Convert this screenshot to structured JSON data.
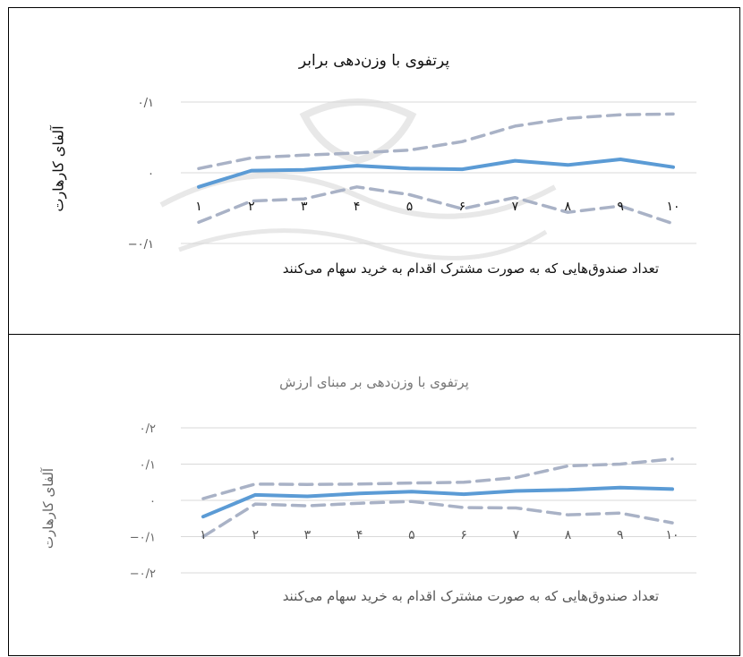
{
  "chart_data": [
    {
      "type": "line",
      "title": "پرتفوی با وزن‌دهی برابر",
      "xlabel": "تعداد صندوق‌هایی که به صورت مشترک اقدام به خرید سهام می‌کنند",
      "ylabel": "آلفای کارهارت",
      "categories": [
        "۱",
        "۲",
        "۳",
        "۴",
        "۵",
        "۶",
        "۷",
        "۸",
        "۹",
        "۱۰"
      ],
      "ytick_labels": [
        "۰/۱",
        "۰",
        "−۰/۱"
      ],
      "ytick_values": [
        0.1,
        0,
        -0.1
      ],
      "ylim": [
        -0.1,
        0.1
      ],
      "grid": true,
      "series": [
        {
          "style": "solid",
          "color": "#5b9bd5",
          "values": [
            -0.02,
            0.003,
            0.004,
            0.01,
            0.006,
            0.005,
            0.017,
            0.011,
            0.019,
            0.008
          ]
        },
        {
          "style": "dashed",
          "color": "#a9b2c6",
          "values": [
            0.006,
            0.021,
            0.025,
            0.028,
            0.032,
            0.044,
            0.066,
            0.077,
            0.082,
            0.083
          ]
        },
        {
          "style": "dashed",
          "color": "#a9b2c6",
          "values": [
            -0.07,
            -0.04,
            -0.037,
            -0.02,
            -0.031,
            -0.051,
            -0.035,
            -0.056,
            -0.047,
            -0.072
          ]
        }
      ]
    },
    {
      "type": "line",
      "title": "پرتفوی با وزن‌دهی بر مبنای ارزش",
      "xlabel": "تعداد صندوق‌هایی که به صورت مشترک اقدام به خرید سهام می‌کنند",
      "ylabel": "آلفای کارهارت",
      "categories": [
        "۱",
        "۲",
        "۳",
        "۴",
        "۵",
        "۶",
        "۷",
        "۸",
        "۹",
        "۱۰"
      ],
      "ytick_labels": [
        "۰/۲",
        "۰/۱",
        "۰",
        "−۰/۱",
        "−۰/۲"
      ],
      "ytick_values": [
        0.2,
        0.1,
        0,
        -0.1,
        -0.2
      ],
      "ylim": [
        -0.2,
        0.2
      ],
      "grid": true,
      "series": [
        {
          "style": "solid",
          "color": "#5b9bd5",
          "values": [
            -0.045,
            0.015,
            0.011,
            0.019,
            0.024,
            0.017,
            0.026,
            0.029,
            0.035,
            0.031
          ]
        },
        {
          "style": "dashed",
          "color": "#a9b2c6",
          "values": [
            0.005,
            0.045,
            0.044,
            0.045,
            0.048,
            0.05,
            0.063,
            0.095,
            0.1,
            0.114
          ]
        },
        {
          "style": "dashed",
          "color": "#a9b2c6",
          "values": [
            -0.1,
            -0.01,
            -0.015,
            -0.008,
            -0.003,
            -0.02,
            -0.021,
            -0.04,
            -0.035,
            -0.062
          ]
        }
      ]
    }
  ]
}
